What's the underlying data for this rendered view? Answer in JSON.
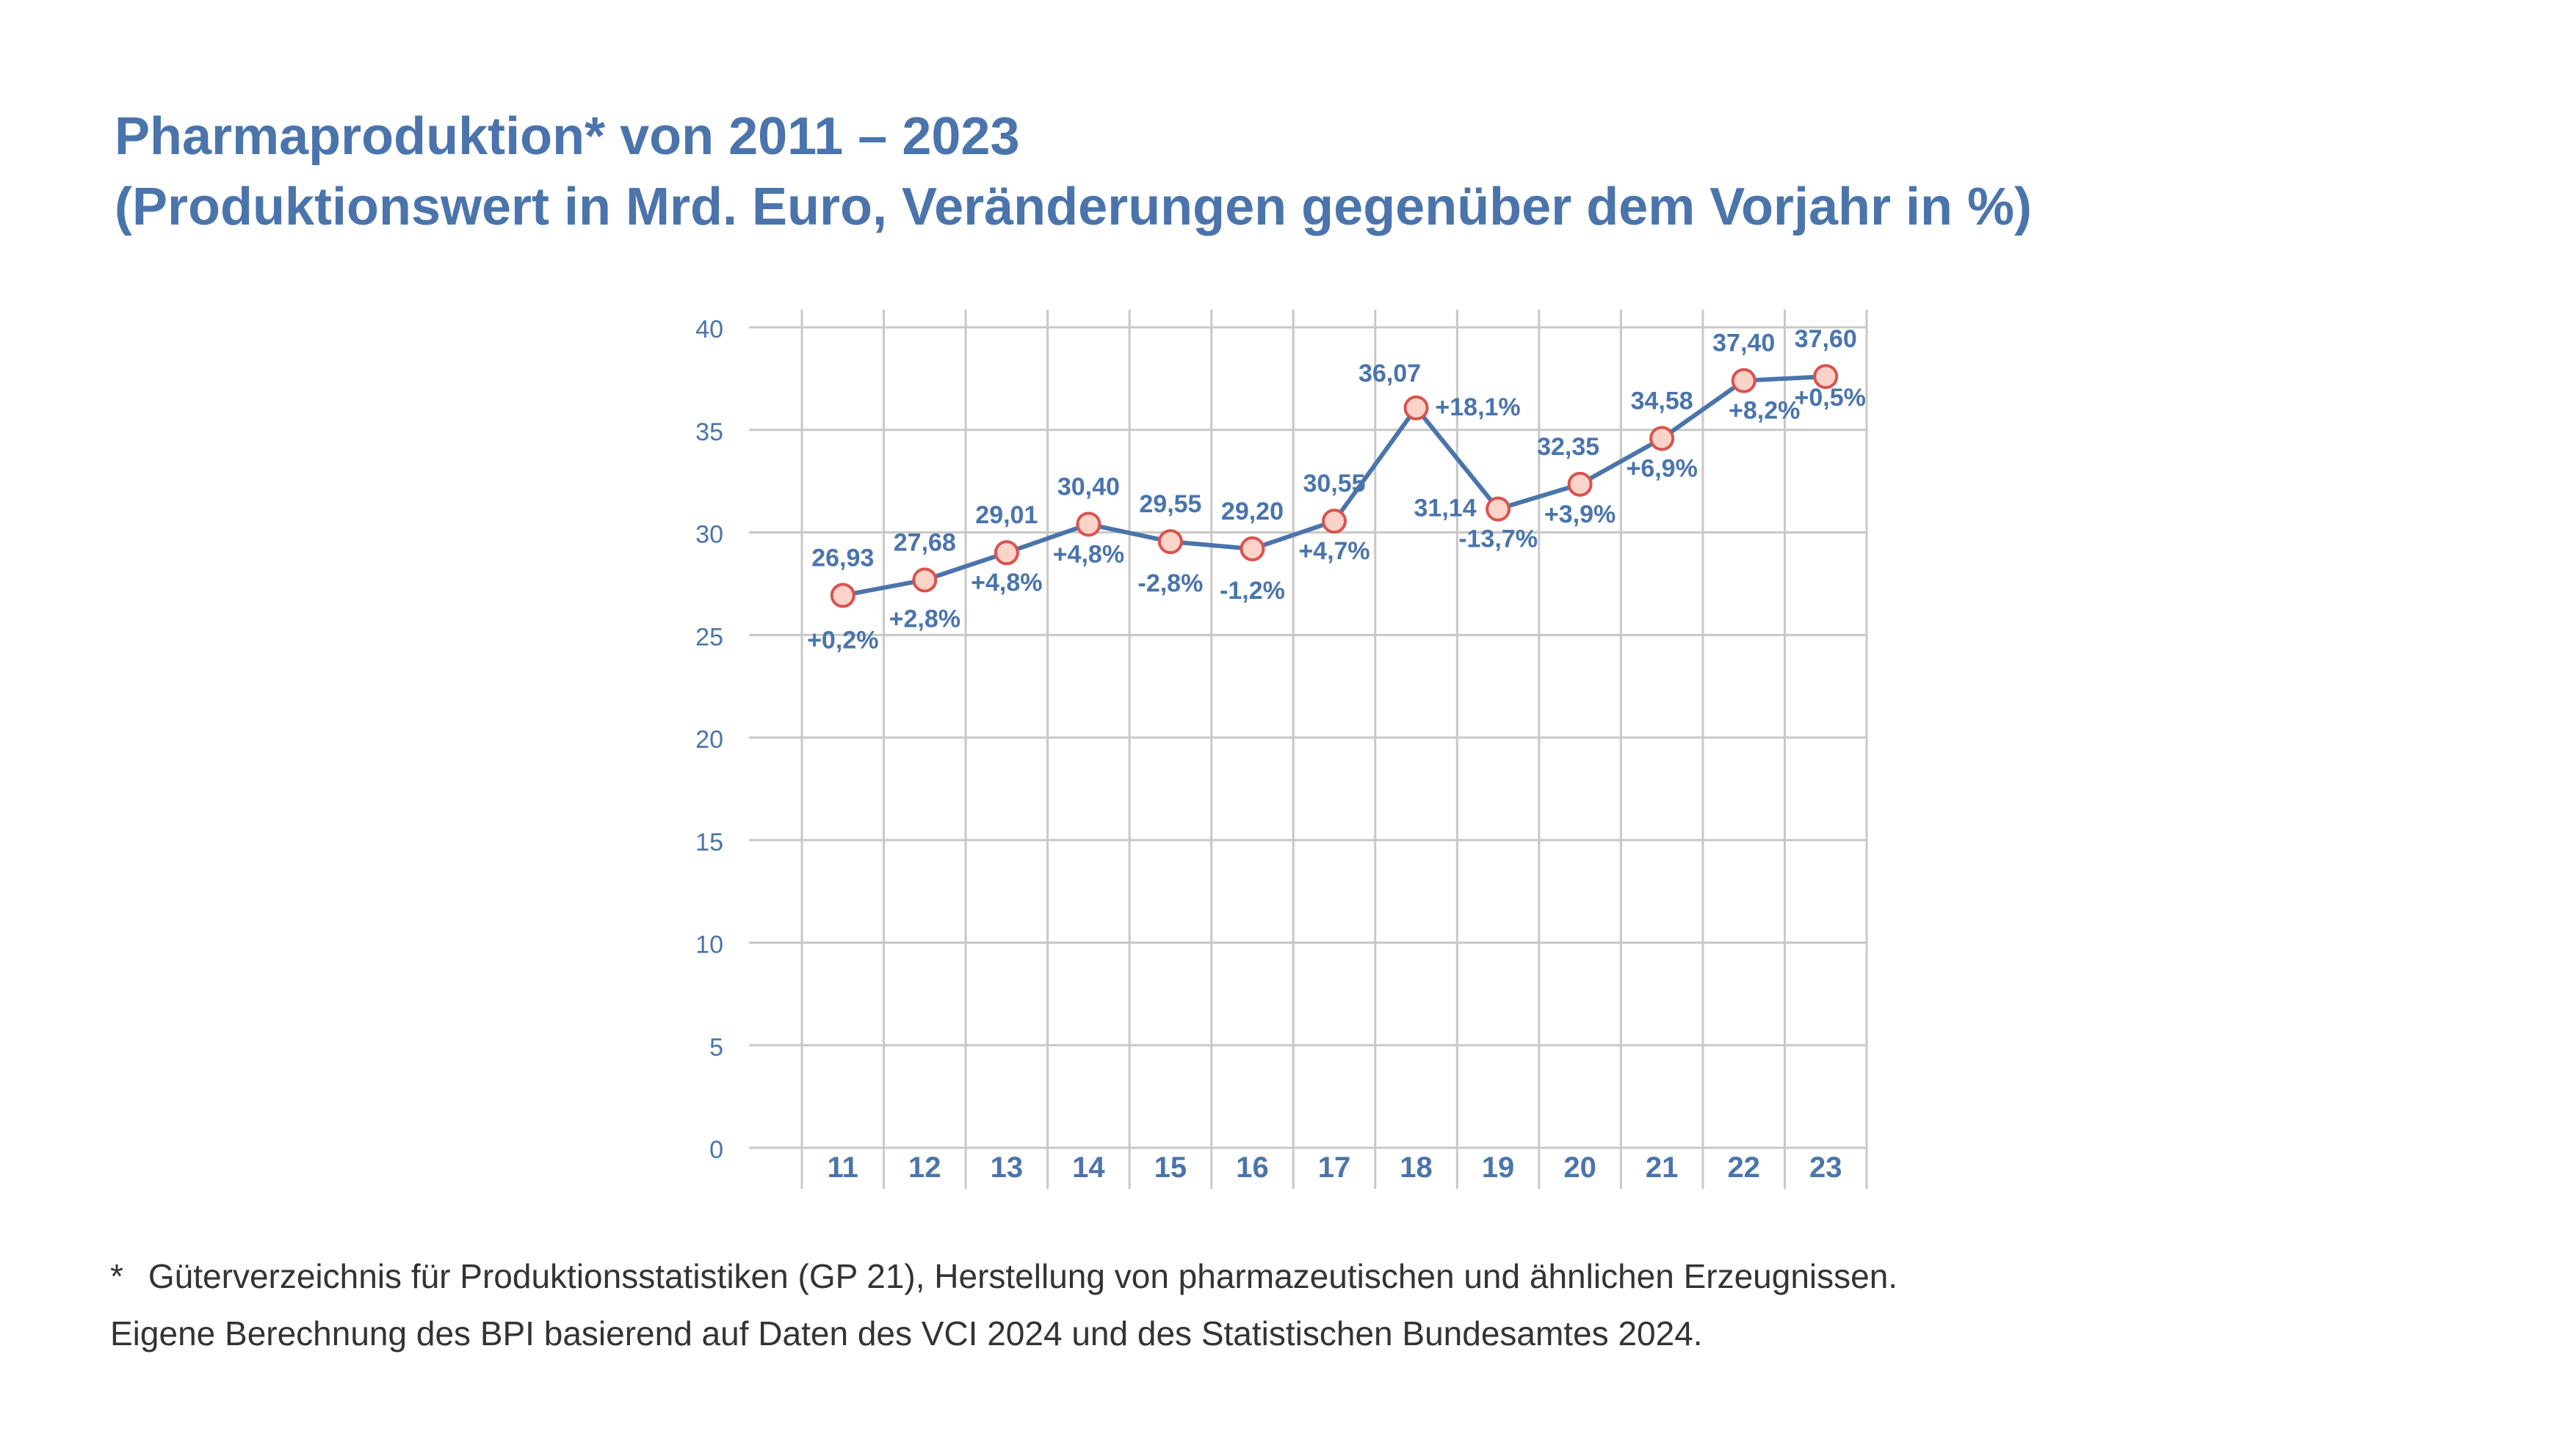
{
  "title": {
    "line1": "Pharmaproduktion* von 2011 – 2023",
    "line2": "(Produktionswert in Mrd. Euro, Veränderungen gegenüber dem Vorjahr in %)"
  },
  "footnote": {
    "star": "*",
    "line1": "Güterverzeichnis für Produktionsstatistiken (GP 21), Herstellung von pharmazeutischen und ähnlichen Erzeugnissen.",
    "line2": "Eigene Berechnung des BPI basierend auf Daten des VCI 2024 und des Statistischen Bundesamtes 2024."
  },
  "colors": {
    "text": "#4a74ab",
    "line": "#4a74ab",
    "grid": "#c8c8c8",
    "marker_fill": "#fbd3c9",
    "marker_stroke": "#d9534f"
  },
  "chart_data": {
    "type": "line",
    "categories": [
      "11",
      "12",
      "13",
      "14",
      "15",
      "16",
      "17",
      "18",
      "19",
      "20",
      "21",
      "22",
      "23"
    ],
    "values": [
      26.93,
      27.68,
      29.01,
      30.4,
      29.55,
      29.2,
      30.55,
      36.07,
      31.14,
      32.35,
      34.58,
      37.4,
      37.6
    ],
    "value_labels": [
      "26,93",
      "27,68",
      "29,01",
      "30,40",
      "29,55",
      "29,20",
      "30,55",
      "36,07",
      "31,14",
      "32,35",
      "34,58",
      "37,40",
      "37,60"
    ],
    "change_labels": [
      "+0,2%",
      "+2,8%",
      "+4,8%",
      "+4,8%",
      "-2,8%",
      "-1,2%",
      "+4,7%",
      "+18,1%",
      "-13,7%",
      "+3,9%",
      "+6,9%",
      "+8,2%",
      "+0,5%"
    ],
    "yticks": [
      0,
      5,
      10,
      15,
      20,
      25,
      30,
      35,
      40
    ],
    "ylim": [
      0,
      40
    ],
    "grid": true
  }
}
